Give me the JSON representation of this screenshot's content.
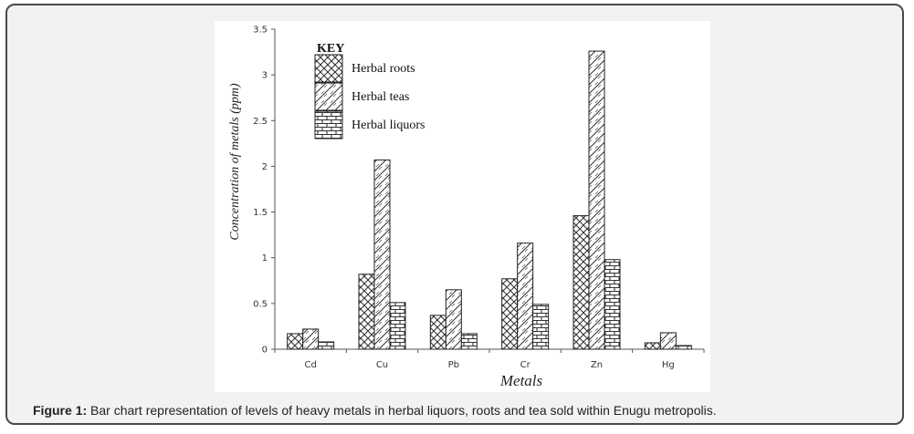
{
  "figure": {
    "label": "Figure 1:",
    "caption": "Bar chart representation of levels of heavy metals in herbal liquors, roots and tea sold within Enugu metropolis."
  },
  "chart_data": {
    "type": "bar",
    "title": "",
    "xlabel": "Metals",
    "ylabel": "Concentration of metals (ppm)",
    "ylim": [
      0,
      3.5
    ],
    "yticks": [
      0,
      0.5,
      1,
      1.5,
      2,
      2.5,
      3,
      3.5
    ],
    "ytick_labels": [
      "0",
      "0.5",
      "1",
      "1.5",
      "2",
      "2.5",
      "3",
      "3.5"
    ],
    "categories": [
      "Cd",
      "Cu",
      "Pb",
      "Cr",
      "Zn",
      "Hg"
    ],
    "legend_title": "KEY",
    "legend_position": "top-left",
    "series": [
      {
        "name": "Herbal roots",
        "pattern": "herringbone",
        "values": [
          0.17,
          0.82,
          0.37,
          0.77,
          1.46,
          0.07
        ]
      },
      {
        "name": "Herbal teas",
        "pattern": "diamond",
        "values": [
          0.22,
          2.07,
          0.65,
          1.16,
          3.26,
          0.18
        ]
      },
      {
        "name": "Herbal liquors",
        "pattern": "brick",
        "values": [
          0.08,
          0.51,
          0.17,
          0.49,
          0.98,
          0.04
        ]
      }
    ]
  }
}
